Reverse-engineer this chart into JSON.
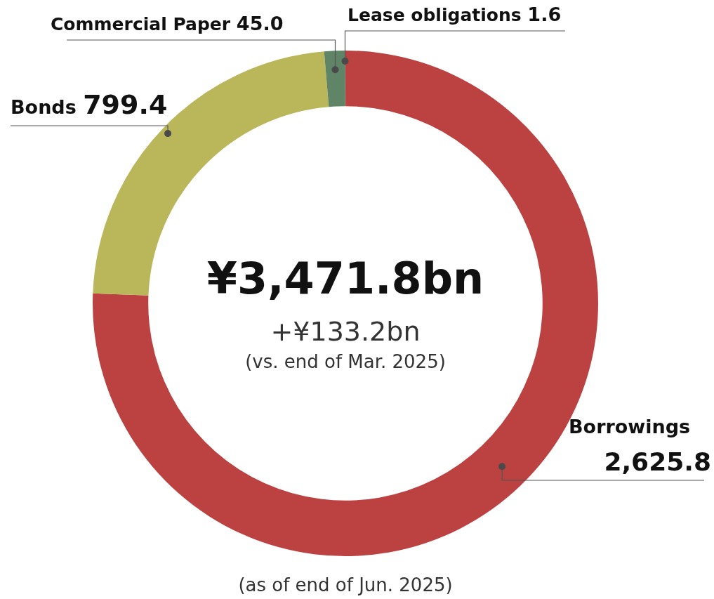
{
  "chart_data": {
    "type": "donut",
    "title": "¥3,471.8bn",
    "subtitle": "+¥133.2bn",
    "annotations": [
      "(vs. end of Mar. 2025)",
      "(as of end of Jun. 2025)"
    ],
    "categories": [
      "Borrowings",
      "Bonds",
      "Commercial Paper",
      "Lease obligations"
    ],
    "values": [
      2625.8,
      799.4,
      45.0,
      1.6
    ],
    "value_labels": [
      "2,625.8",
      "799.4",
      "45.0",
      "1.6"
    ],
    "colors": [
      "#bc4242",
      "#bab65a",
      "#5f8466",
      "#6f9478"
    ],
    "legend": false
  }
}
